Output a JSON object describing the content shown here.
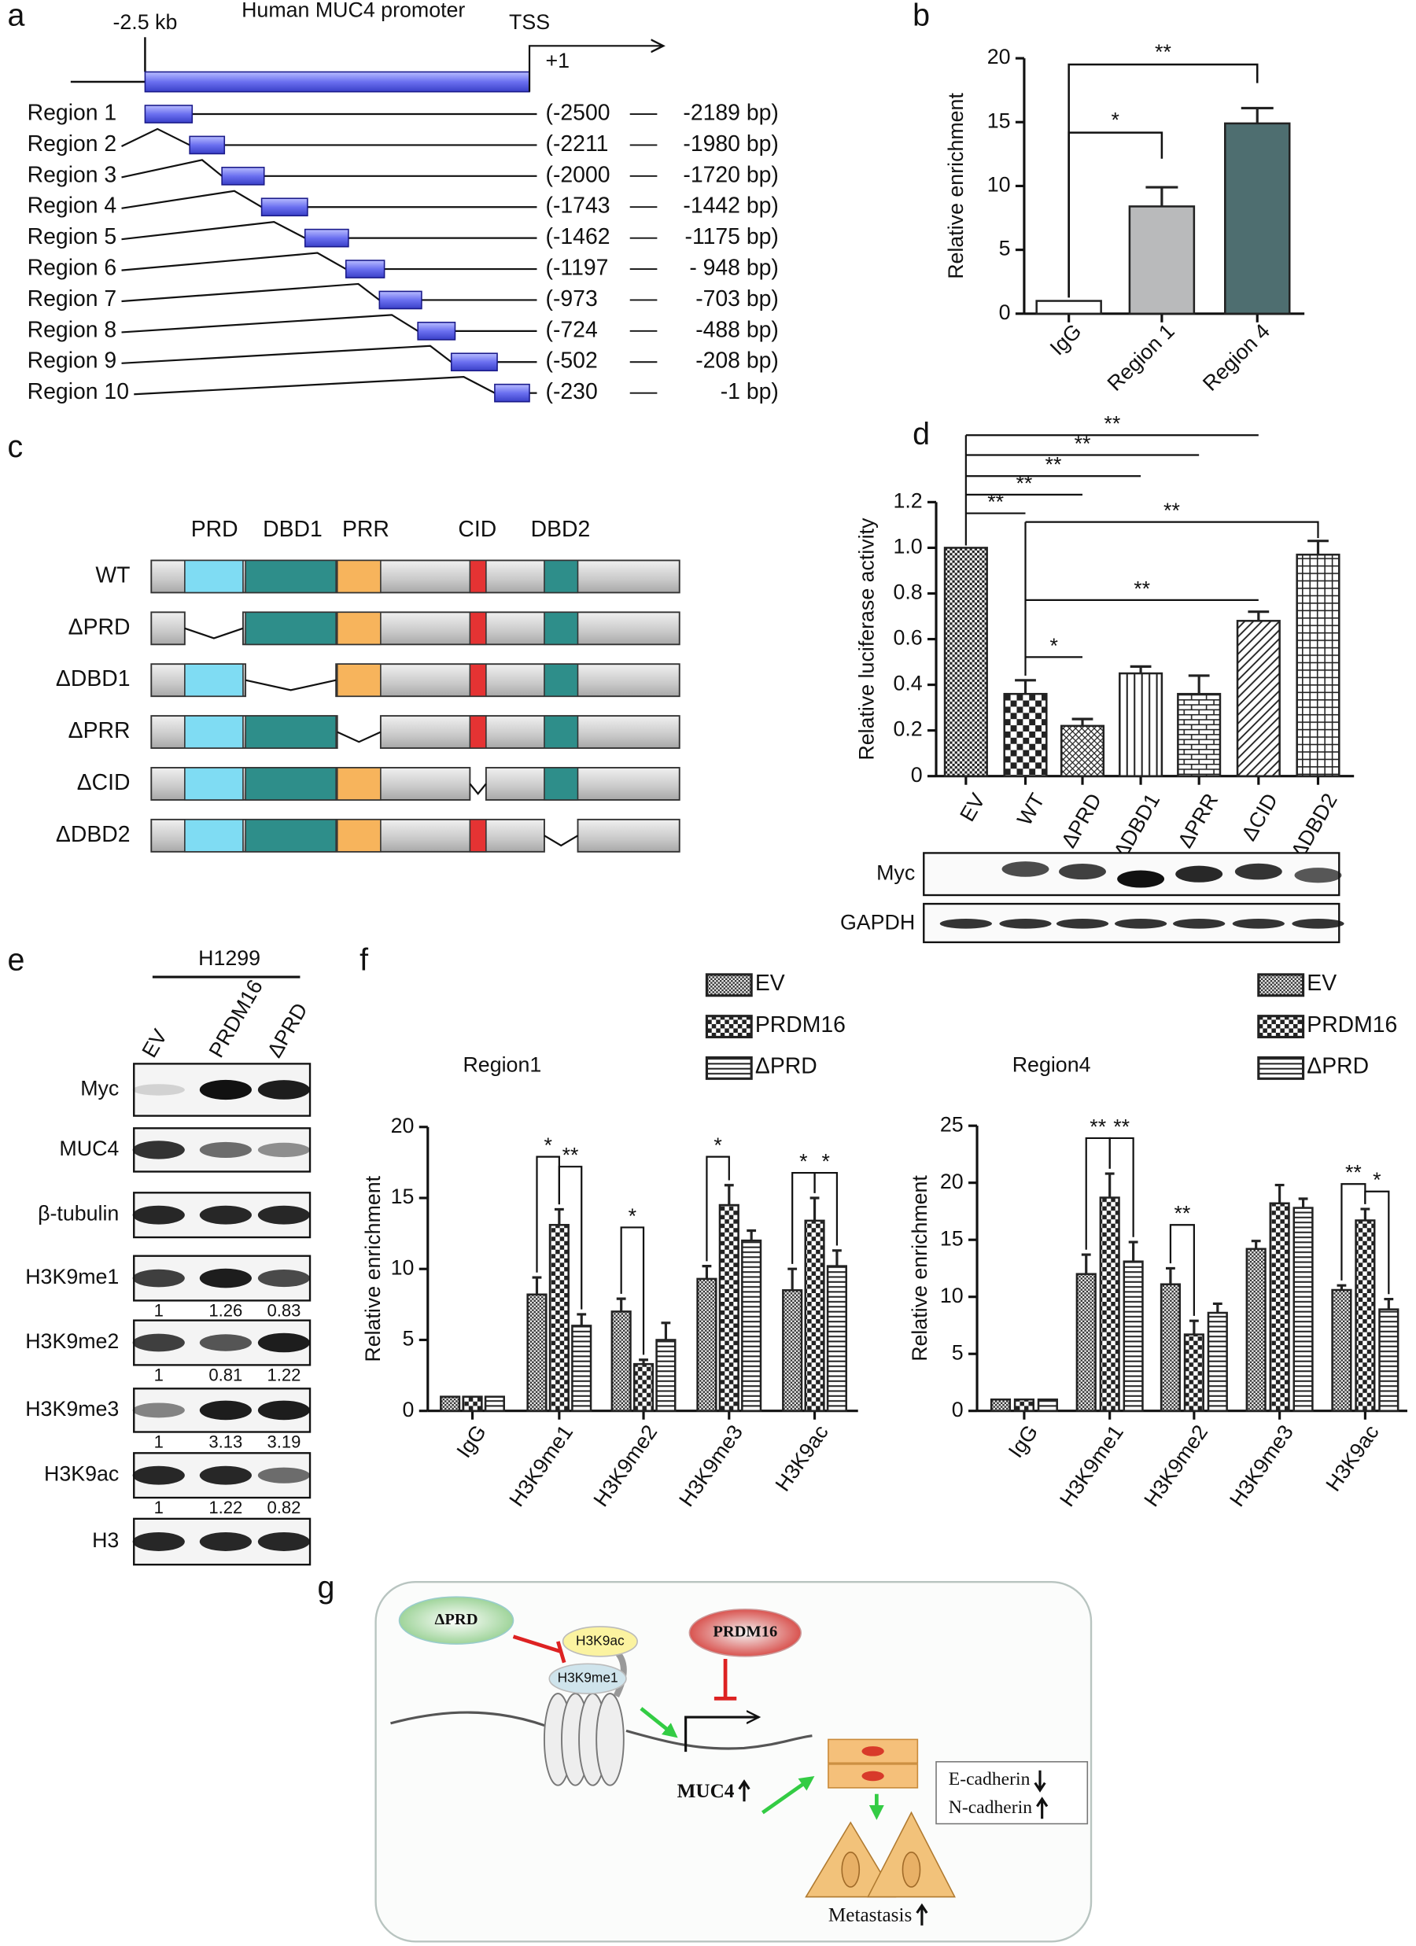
{
  "panel_labels": [
    "a",
    "b",
    "c",
    "d",
    "e",
    "f",
    "g"
  ],
  "promoter": {
    "title": "Human MUC4 promoter",
    "start_label": "-2.5 kb",
    "tss": "TSS",
    "plus_one": "+1",
    "regions": [
      {
        "name": "Region 1",
        "from": "(-2500",
        "to": "-2189 bp)"
      },
      {
        "name": "Region 2",
        "from": "(-2211",
        "to": "-1980 bp)"
      },
      {
        "name": "Region 3",
        "from": "(-2000",
        "to": "-1720 bp)"
      },
      {
        "name": "Region 4",
        "from": "(-1743",
        "to": "-1442 bp)"
      },
      {
        "name": "Region 5",
        "from": "(-1462",
        "to": "-1175 bp)"
      },
      {
        "name": "Region 6",
        "from": "(-1197",
        "to": "- 948 bp)"
      },
      {
        "name": "Region 7",
        "from": "(-973",
        "to": "-703 bp)"
      },
      {
        "name": "Region 8",
        "from": "(-724",
        "to": "-488 bp)"
      },
      {
        "name": "Region 9",
        "from": "(-502",
        "to": "-208 bp)"
      },
      {
        "name": "Region 10",
        "from": "(-230",
        "to": "-1 bp)"
      }
    ]
  },
  "chart_data": [
    {
      "type": "bar",
      "ylabel": "Relative enrichment",
      "categories": [
        "IgG",
        "Region 1",
        "Region 4"
      ],
      "values": [
        1,
        8.4,
        14.9
      ],
      "errors": [
        null,
        1.5,
        1.2
      ],
      "colors": [
        "#ffffff",
        "#b9babb",
        "#4e6e70"
      ],
      "ylim": [
        0,
        20
      ],
      "yticks": [
        0,
        5,
        10,
        15,
        20
      ],
      "annotations": [
        "*",
        "**"
      ]
    },
    {
      "type": "bar",
      "ylabel": "Relative luciferase activity",
      "categories": [
        "EV",
        "WT",
        "ΔPRD",
        "ΔDBD1",
        "ΔPRR",
        "ΔCID",
        "ΔDBD2"
      ],
      "values": [
        1,
        0.36,
        0.22,
        0.45,
        0.36,
        0.68,
        0.97
      ],
      "errors": [
        null,
        0.06,
        0.03,
        0.03,
        0.08,
        0.04,
        0.06
      ],
      "ylim": [
        0,
        1.2
      ],
      "yticks": [
        0,
        0.2,
        0.4,
        0.6,
        0.8,
        {
          "value": 1,
          "label": "1.0"
        },
        1.2
      ],
      "annotations": [
        "**",
        "**",
        "**",
        "**",
        "**",
        "**",
        "**",
        "*"
      ]
    },
    {
      "type": "bar",
      "title": "Region1",
      "ylabel": "Relative enrichment",
      "categories": [
        "IgG",
        "H3K9me1",
        "H3K9me2",
        "H3K9me3",
        "H3K9ac"
      ],
      "series": [
        {
          "name": "EV",
          "values": [
            1,
            8.2,
            7.0,
            9.3,
            8.5
          ],
          "errors": [
            null,
            1.2,
            0.9,
            0.9,
            1.5
          ]
        },
        {
          "name": "PRDM16",
          "values": [
            1,
            13.1,
            3.3,
            14.5,
            13.4
          ],
          "errors": [
            null,
            1.1,
            0.3,
            1.4,
            1.6
          ]
        },
        {
          "name": "ΔPRD",
          "values": [
            1,
            6.0,
            5.0,
            12.0,
            10.2
          ],
          "errors": [
            null,
            0.8,
            1.2,
            0.7,
            1.1
          ]
        }
      ],
      "ylim": [
        0,
        20
      ],
      "yticks": [
        0,
        5,
        10,
        15,
        20
      ],
      "annotations": [
        "*",
        "**",
        "*",
        "*",
        "*",
        "*"
      ]
    },
    {
      "type": "bar",
      "title": "Region4",
      "ylabel": "Relative enrichment",
      "categories": [
        "IgG",
        "H3K9me1",
        "H3K9me2",
        "H3K9me3",
        "H3K9ac"
      ],
      "series": [
        {
          "name": "EV",
          "values": [
            1,
            12.0,
            11.1,
            14.2,
            10.6
          ],
          "errors": [
            null,
            1.7,
            1.4,
            0.7,
            0.4
          ]
        },
        {
          "name": "PRDM16",
          "values": [
            1,
            18.7,
            6.7,
            18.2,
            16.7
          ],
          "errors": [
            null,
            2.1,
            1.2,
            1.6,
            1.0
          ]
        },
        {
          "name": "ΔPRD",
          "values": [
            1,
            13.1,
            8.6,
            17.8,
            8.9
          ],
          "errors": [
            null,
            1.7,
            0.8,
            0.8,
            0.9
          ]
        }
      ],
      "ylim": [
        0,
        25
      ],
      "yticks": [
        0,
        5,
        10,
        15,
        20,
        25
      ],
      "annotations": [
        "**",
        "**",
        "**",
        "**",
        "*"
      ]
    }
  ],
  "domains": {
    "names": [
      "PRD",
      "DBD1",
      "PRR",
      "CID",
      "DBD2"
    ],
    "constructs": [
      "WT",
      "ΔPRD",
      "ΔDBD1",
      "ΔPRR",
      "ΔCID",
      "ΔDBD2"
    ]
  },
  "blot_d": {
    "rows": [
      "Myc",
      "GAPDH"
    ]
  },
  "blot_e": {
    "cell_line": "H1299",
    "lanes": [
      "EV",
      "PRDM16",
      "ΔPRD"
    ],
    "rows": [
      {
        "name": "Myc"
      },
      {
        "name": "MUC4"
      },
      {
        "name": "β-tubulin"
      },
      {
        "name": "H3K9me1",
        "quant": [
          "1",
          "1.26",
          "0.83"
        ]
      },
      {
        "name": "H3K9me2",
        "quant": [
          "1",
          "0.81",
          "1.22"
        ]
      },
      {
        "name": "H3K9me3",
        "quant": [
          "1",
          "3.13",
          "3.19"
        ]
      },
      {
        "name": "H3K9ac",
        "quant": [
          "1",
          "1.22",
          "0.82"
        ]
      },
      {
        "name": "H3"
      }
    ]
  },
  "model": {
    "deletion": "ΔPRD",
    "mark_ac": "H3K9ac",
    "mark_me1": "H3K9me1",
    "factor": "PRDM16",
    "gene": "MUC4",
    "outcome": "Metastasis",
    "markers": [
      "E-cadherin",
      "N-cadherin"
    ]
  }
}
